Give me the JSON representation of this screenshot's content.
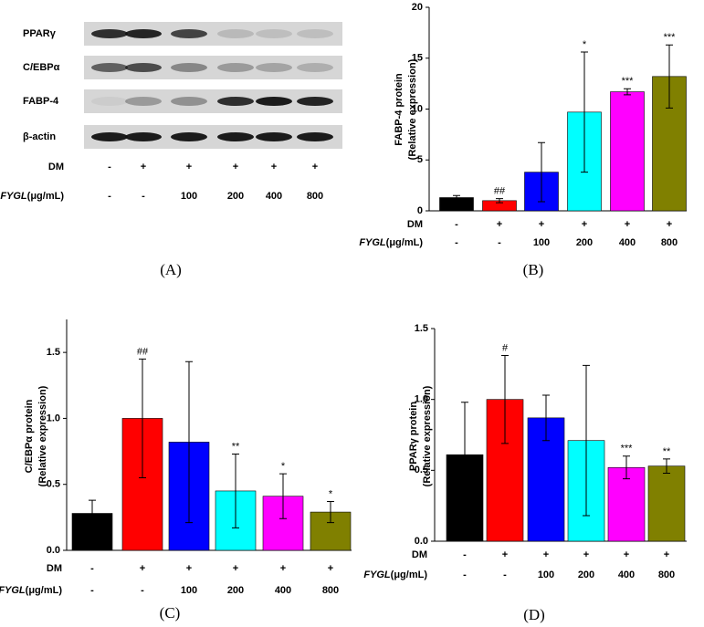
{
  "blot": {
    "proteins": [
      "PPARγ",
      "C/EBPα",
      "FABP-4",
      "β-actin"
    ],
    "dm_label": "DM",
    "dm": [
      "-",
      "+",
      "+",
      "+",
      "+",
      "+"
    ],
    "fygl_name": "FYGL",
    "fygl_unit": "(μg/mL)",
    "fygl": [
      "-",
      "-",
      "100",
      "200",
      "400",
      "800"
    ],
    "panel": "(A)"
  },
  "chart_data": [
    {
      "type": "bar",
      "panel": "(B)",
      "ylabel": "FABP-4 protein",
      "ylabel2": "(Relative expression)",
      "dm_label": "DM",
      "dm": [
        "-",
        "+",
        "+",
        "+",
        "+",
        "+"
      ],
      "fygl_name": "FYGL",
      "fygl_unit": "(μg/mL)",
      "fygl": [
        "-",
        "-",
        "100",
        "200",
        "400",
        "800"
      ],
      "values": [
        1.3,
        1.0,
        3.8,
        9.7,
        11.7,
        13.2
      ],
      "errors": [
        0.2,
        0.2,
        2.9,
        5.9,
        0.3,
        3.1
      ],
      "annotations": [
        null,
        "##",
        null,
        "*",
        "***",
        "***"
      ],
      "colors": [
        "#000000",
        "#ff0000",
        "#0000ff",
        "#00ffff",
        "#ff00ff",
        "#808000"
      ],
      "ylim": [
        0,
        20
      ],
      "yticks": [
        0,
        5,
        10,
        15,
        20
      ]
    },
    {
      "type": "bar",
      "panel": "(C)",
      "ylabel": "C/EBPα protein",
      "ylabel2": "(Relative expression)",
      "dm_label": "DM",
      "dm": [
        "-",
        "+",
        "+",
        "+",
        "+",
        "+"
      ],
      "fygl_name": "FYGL",
      "fygl_unit": "(μg/mL)",
      "fygl": [
        "-",
        "-",
        "100",
        "200",
        "400",
        "800"
      ],
      "values": [
        0.28,
        1.0,
        0.82,
        0.45,
        0.41,
        0.29
      ],
      "errors": [
        0.1,
        0.45,
        0.61,
        0.28,
        0.17,
        0.08
      ],
      "annotations": [
        null,
        "##",
        null,
        "**",
        "*",
        "*"
      ],
      "colors": [
        "#000000",
        "#ff0000",
        "#0000ff",
        "#00ffff",
        "#ff00ff",
        "#808000"
      ],
      "ylim": [
        0,
        1.75
      ],
      "yticks": [
        {
          "value": 0,
          "label": "0.0"
        },
        0.5,
        {
          "value": 1,
          "label": "1.0"
        },
        1.5
      ]
    },
    {
      "type": "bar",
      "panel": "(D)",
      "ylabel": "PPARγ protein",
      "ylabel2": "(Relative expression)",
      "dm_label": "DM",
      "dm": [
        "-",
        "+",
        "+",
        "+",
        "+",
        "+"
      ],
      "fygl_name": "FYGL",
      "fygl_unit": "(μg/mL)",
      "fygl": [
        "-",
        "-",
        "100",
        "200",
        "400",
        "800"
      ],
      "values": [
        0.61,
        1.0,
        0.87,
        0.71,
        0.52,
        0.53
      ],
      "errors": [
        0.37,
        0.31,
        0.16,
        0.53,
        0.08,
        0.05
      ],
      "annotations": [
        null,
        "#",
        null,
        null,
        "***",
        "**"
      ],
      "colors": [
        "#000000",
        "#ff0000",
        "#0000ff",
        "#00ffff",
        "#ff00ff",
        "#808000"
      ],
      "ylim": [
        0,
        1.5
      ],
      "yticks": [
        {
          "value": 0,
          "label": "0.0"
        },
        0.5,
        {
          "value": 1,
          "label": "1.0"
        },
        1.5
      ]
    }
  ]
}
